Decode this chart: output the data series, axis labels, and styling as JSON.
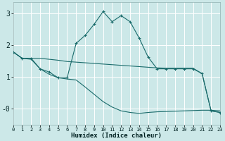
{
  "xlabel": "Humidex (Indice chaleur)",
  "x_ticks": [
    0,
    1,
    2,
    3,
    4,
    5,
    6,
    7,
    8,
    9,
    10,
    11,
    12,
    13,
    14,
    15,
    16,
    17,
    18,
    19,
    20,
    21,
    22,
    23
  ],
  "y_ticks": [
    0,
    1,
    2,
    3
  ],
  "y_tick_labels": [
    "-0",
    "1",
    "2",
    "3"
  ],
  "ylim": [
    -0.5,
    3.35
  ],
  "xlim": [
    0,
    23
  ],
  "bg_color": "#cce8e8",
  "grid_color": "#b8d8d8",
  "line_color": "#1a6b6b",
  "line1_x": [
    0,
    1,
    2,
    3,
    4,
    5,
    6,
    7,
    8,
    9,
    10,
    11,
    12,
    13,
    14,
    15,
    16,
    17,
    18,
    19,
    20,
    21,
    22,
    23
  ],
  "line1_y": [
    1.78,
    1.58,
    1.58,
    1.58,
    1.55,
    1.52,
    1.48,
    1.46,
    1.44,
    1.42,
    1.4,
    1.38,
    1.36,
    1.34,
    1.32,
    1.3,
    1.28,
    1.27,
    1.27,
    1.27,
    1.27,
    1.1,
    -0.07,
    -0.12
  ],
  "line2_x": [
    0,
    1,
    2,
    3,
    4,
    5,
    6,
    7,
    8,
    9,
    10,
    11,
    12,
    13,
    14,
    15,
    16,
    17,
    18,
    19,
    20,
    21,
    22,
    23
  ],
  "line2_y": [
    1.78,
    1.58,
    1.58,
    1.25,
    1.15,
    0.97,
    0.97,
    2.05,
    2.3,
    2.65,
    3.05,
    2.73,
    2.92,
    2.73,
    2.22,
    1.62,
    1.25,
    1.25,
    1.25,
    1.25,
    1.25,
    1.1,
    -0.07,
    -0.12
  ],
  "line3_x": [
    0,
    1,
    2,
    3,
    4,
    5,
    6,
    7,
    8,
    9,
    10,
    11,
    12,
    13,
    14,
    15,
    16,
    17,
    18,
    19,
    20,
    21,
    22,
    23
  ],
  "line3_y": [
    1.78,
    1.58,
    1.55,
    1.25,
    1.08,
    0.97,
    0.93,
    0.9,
    0.68,
    0.45,
    0.22,
    0.05,
    -0.07,
    -0.12,
    -0.15,
    -0.12,
    -0.1,
    -0.09,
    -0.08,
    -0.07,
    -0.06,
    -0.05,
    -0.05,
    -0.07
  ]
}
